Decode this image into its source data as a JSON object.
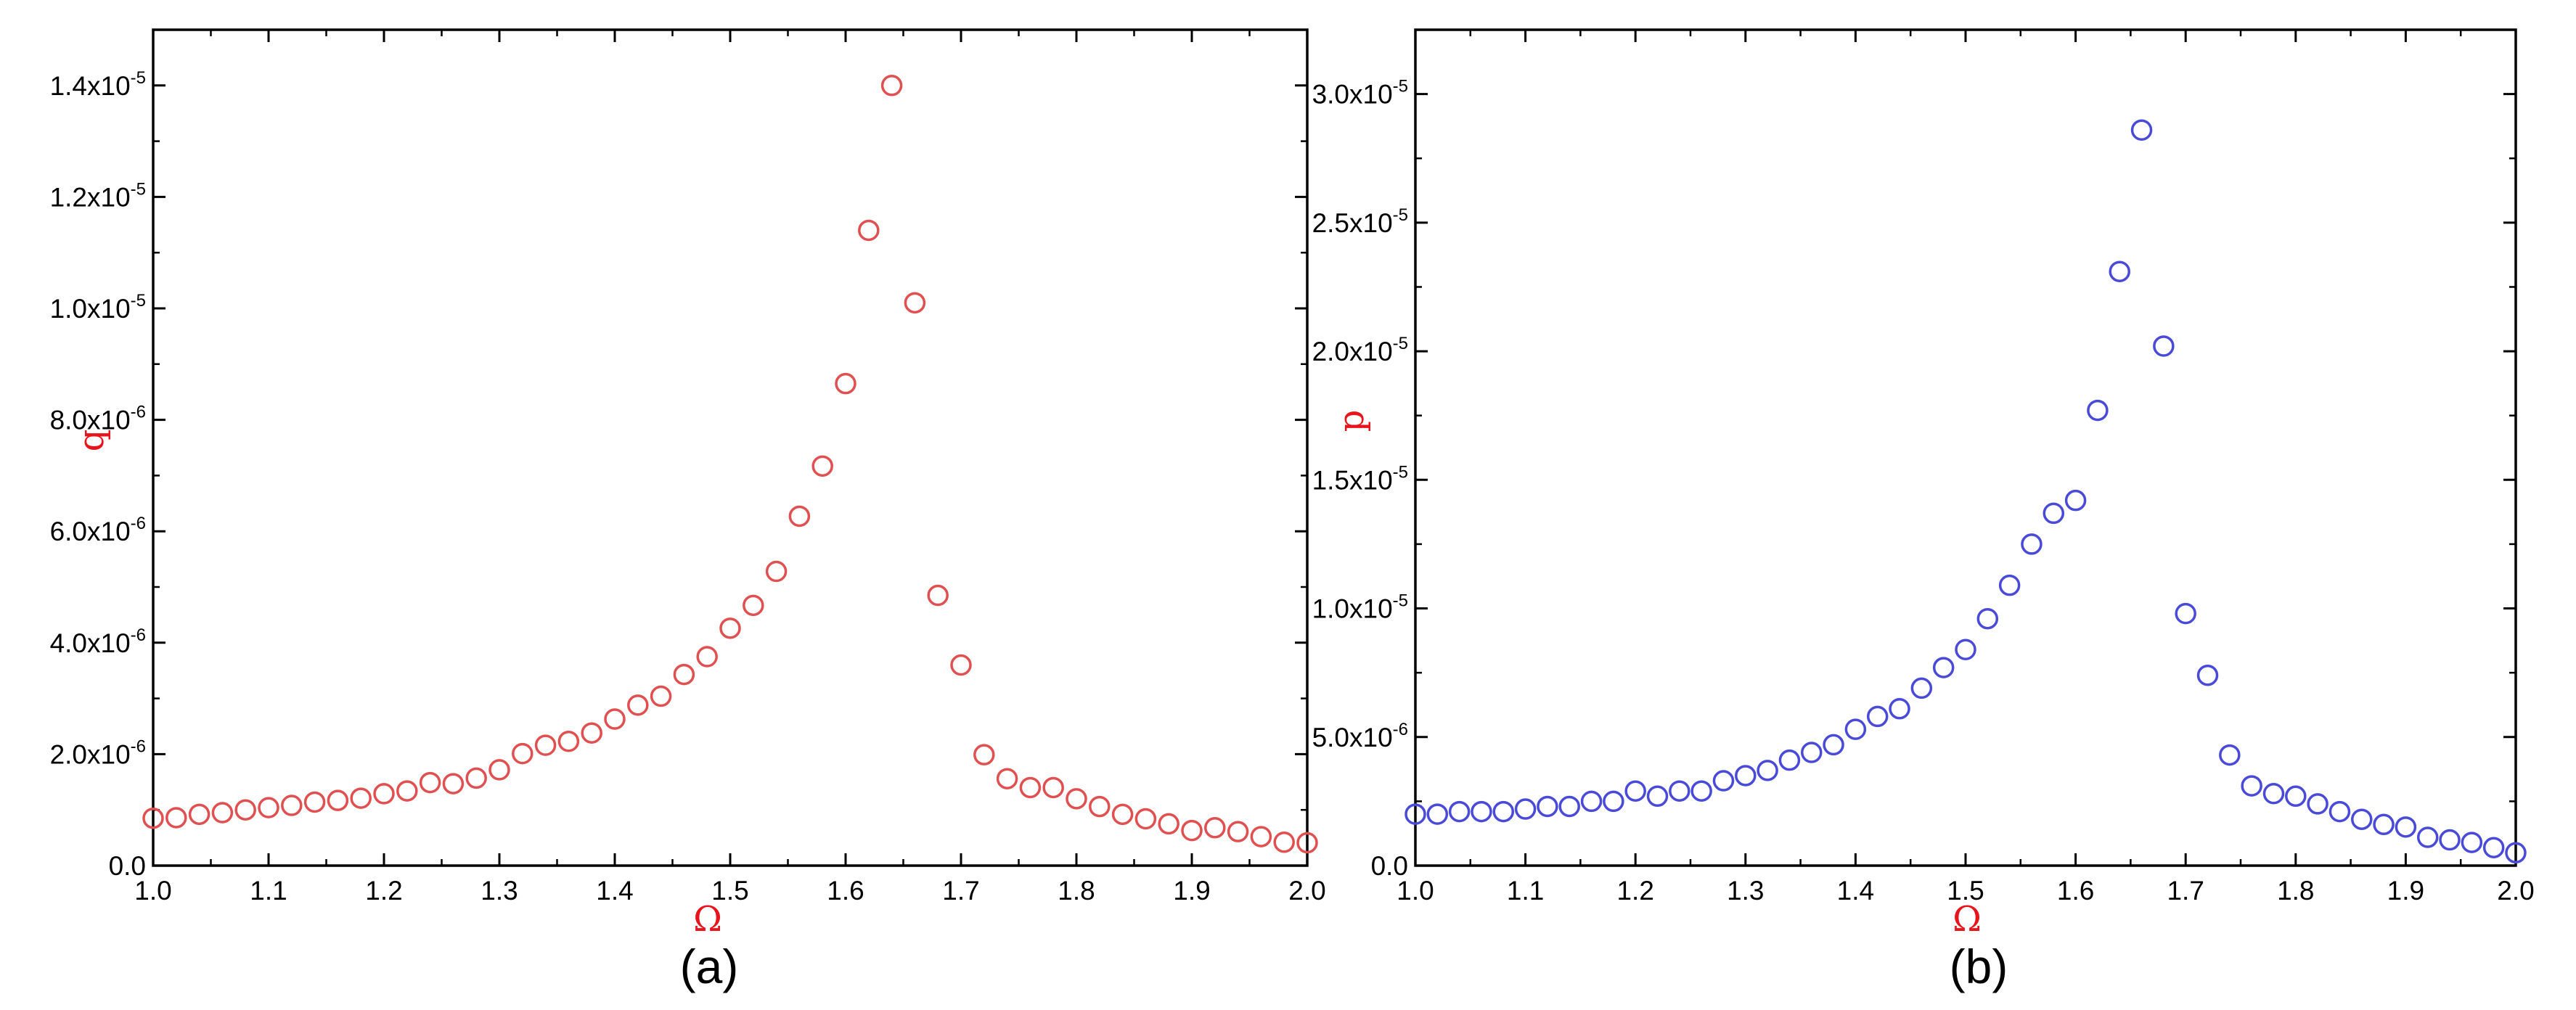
{
  "figure": {
    "panels": [
      "(a)",
      "(b)"
    ]
  },
  "chart_data": [
    {
      "type": "scatter",
      "panel_label": "(a)",
      "xlabel": "Ω",
      "ylabel": "q",
      "xlim": [
        1.0,
        2.0
      ],
      "ylim": [
        0,
        1.5e-05
      ],
      "xticks": [
        {
          "value": 1.0,
          "label": "1.0"
        },
        {
          "value": 1.1,
          "label": "1.1"
        },
        {
          "value": 1.2,
          "label": "1.2"
        },
        {
          "value": 1.3,
          "label": "1.3"
        },
        {
          "value": 1.4,
          "label": "1.4"
        },
        {
          "value": 1.5,
          "label": "1.5"
        },
        {
          "value": 1.6,
          "label": "1.6"
        },
        {
          "value": 1.7,
          "label": "1.7"
        },
        {
          "value": 1.8,
          "label": "1.8"
        },
        {
          "value": 1.9,
          "label": "1.9"
        },
        {
          "value": 2.0,
          "label": "2.0"
        }
      ],
      "yticks": [
        {
          "value": 0,
          "mantissa": "0.0",
          "exp": ""
        },
        {
          "value": 2e-06,
          "mantissa": "2.0x10",
          "exp": "-6"
        },
        {
          "value": 4e-06,
          "mantissa": "4.0x10",
          "exp": "-6"
        },
        {
          "value": 6e-06,
          "mantissa": "6.0x10",
          "exp": "-6"
        },
        {
          "value": 8e-06,
          "mantissa": "8.0x10",
          "exp": "-6"
        },
        {
          "value": 1e-05,
          "mantissa": "1.0x10",
          "exp": "-5"
        },
        {
          "value": 1.2e-05,
          "mantissa": "1.2x10",
          "exp": "-5"
        },
        {
          "value": 1.4e-05,
          "mantissa": "1.4x10",
          "exp": "-5"
        }
      ],
      "grid": false,
      "marker": "open-circle",
      "color": "#e05050",
      "label_color": "#e8141b",
      "x": [
        1.0,
        1.02,
        1.04,
        1.06,
        1.08,
        1.1,
        1.12,
        1.14,
        1.16,
        1.18,
        1.2,
        1.22,
        1.24,
        1.26,
        1.28,
        1.3,
        1.32,
        1.34,
        1.36,
        1.38,
        1.4,
        1.42,
        1.44,
        1.46,
        1.48,
        1.5,
        1.52,
        1.54,
        1.56,
        1.58,
        1.6,
        1.62,
        1.64,
        1.66,
        1.68,
        1.7,
        1.72,
        1.74,
        1.76,
        1.78,
        1.8,
        1.82,
        1.84,
        1.86,
        1.88,
        1.9,
        1.92,
        1.94,
        1.96,
        1.98,
        2.0
      ],
      "y": [
        8.5e-07,
        8.6e-07,
        9.2e-07,
        9.5e-07,
        1e-06,
        1.04e-06,
        1.08e-06,
        1.14e-06,
        1.17e-06,
        1.21e-06,
        1.29e-06,
        1.34e-06,
        1.49e-06,
        1.47e-06,
        1.57e-06,
        1.72e-06,
        2.01e-06,
        2.16e-06,
        2.23e-06,
        2.38e-06,
        2.63e-06,
        2.88e-06,
        3.04e-06,
        3.43e-06,
        3.75e-06,
        4.26e-06,
        4.67e-06,
        5.28e-06,
        6.27e-06,
        7.17e-06,
        8.65e-06,
        1.14e-05,
        1.4e-05,
        1.01e-05,
        4.85e-06,
        3.6e-06,
        1.99e-06,
        1.56e-06,
        1.4e-06,
        1.4e-06,
        1.2e-06,
        1.06e-06,
        9.2e-07,
        8.4e-07,
        7.5e-07,
        6.3e-07,
        6.8e-07,
        6.1e-07,
        5.2e-07,
        4.2e-07,
        4.1e-07
      ]
    },
    {
      "type": "scatter",
      "panel_label": "(b)",
      "xlabel": "Ω",
      "ylabel": "p",
      "xlim": [
        1.0,
        2.0
      ],
      "ylim": [
        0,
        3.25e-05
      ],
      "xticks": [
        {
          "value": 1.0,
          "label": "1.0"
        },
        {
          "value": 1.1,
          "label": "1.1"
        },
        {
          "value": 1.2,
          "label": "1.2"
        },
        {
          "value": 1.3,
          "label": "1.3"
        },
        {
          "value": 1.4,
          "label": "1.4"
        },
        {
          "value": 1.5,
          "label": "1.5"
        },
        {
          "value": 1.6,
          "label": "1.6"
        },
        {
          "value": 1.7,
          "label": "1.7"
        },
        {
          "value": 1.8,
          "label": "1.8"
        },
        {
          "value": 1.9,
          "label": "1.9"
        },
        {
          "value": 2.0,
          "label": "2.0"
        }
      ],
      "yticks": [
        {
          "value": 0,
          "mantissa": "0.0",
          "exp": ""
        },
        {
          "value": 5e-06,
          "mantissa": "5.0x10",
          "exp": "-6"
        },
        {
          "value": 1e-05,
          "mantissa": "1.0x10",
          "exp": "-5"
        },
        {
          "value": 1.5e-05,
          "mantissa": "1.5x10",
          "exp": "-5"
        },
        {
          "value": 2e-05,
          "mantissa": "2.0x10",
          "exp": "-5"
        },
        {
          "value": 2.5e-05,
          "mantissa": "2.5x10",
          "exp": "-5"
        },
        {
          "value": 3e-05,
          "mantissa": "3.0x10",
          "exp": "-5"
        }
      ],
      "grid": false,
      "marker": "open-circle",
      "color": "#4a4ad8",
      "label_color": "#e8141b",
      "x": [
        1.0,
        1.02,
        1.04,
        1.06,
        1.08,
        1.1,
        1.12,
        1.14,
        1.16,
        1.18,
        1.2,
        1.22,
        1.24,
        1.26,
        1.28,
        1.3,
        1.32,
        1.34,
        1.36,
        1.38,
        1.4,
        1.42,
        1.44,
        1.46,
        1.48,
        1.5,
        1.52,
        1.54,
        1.56,
        1.58,
        1.6,
        1.62,
        1.64,
        1.66,
        1.68,
        1.7,
        1.72,
        1.74,
        1.76,
        1.78,
        1.8,
        1.82,
        1.84,
        1.86,
        1.88,
        1.9,
        1.92,
        1.94,
        1.96,
        1.98,
        2.0
      ],
      "y": [
        2e-06,
        2e-06,
        2.1e-06,
        2.1e-06,
        2.1e-06,
        2.2e-06,
        2.3e-06,
        2.3e-06,
        2.5e-06,
        2.5e-06,
        2.9e-06,
        2.7e-06,
        2.9e-06,
        2.9e-06,
        3.3e-06,
        3.5e-06,
        3.7e-06,
        4.1e-06,
        4.4e-06,
        4.7e-06,
        5.3e-06,
        5.8e-06,
        6.1e-06,
        6.9e-06,
        7.7e-06,
        8.4e-06,
        9.6e-06,
        1.09e-05,
        1.25e-05,
        1.37e-05,
        1.42e-05,
        1.77e-05,
        2.31e-05,
        2.86e-05,
        2.02e-05,
        9.8e-06,
        7.4e-06,
        4.3e-06,
        3.1e-06,
        2.8e-06,
        2.7e-06,
        2.4e-06,
        2.1e-06,
        1.8e-06,
        1.6e-06,
        1.5e-06,
        1.1e-06,
        1e-06,
        9e-07,
        7e-07,
        5e-07
      ]
    }
  ]
}
